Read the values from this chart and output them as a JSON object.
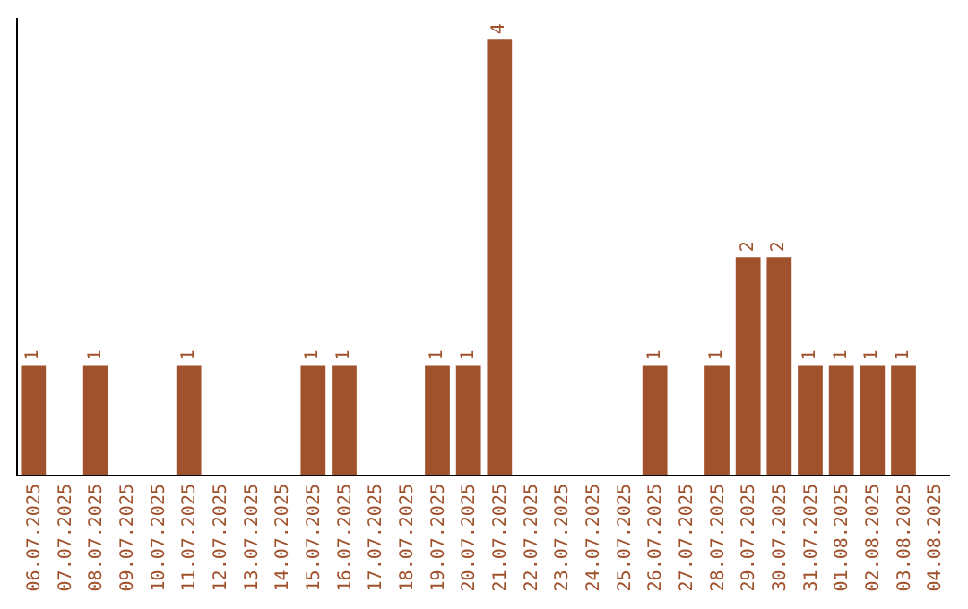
{
  "chart_data": {
    "type": "bar",
    "categories": [
      "06.07.2025",
      "07.07.2025",
      "08.07.2025",
      "09.07.2025",
      "10.07.2025",
      "11.07.2025",
      "12.07.2025",
      "13.07.2025",
      "14.07.2025",
      "15.07.2025",
      "16.07.2025",
      "17.07.2025",
      "18.07.2025",
      "19.07.2025",
      "20.07.2025",
      "21.07.2025",
      "22.07.2025",
      "23.07.2025",
      "24.07.2025",
      "25.07.2025",
      "26.07.2025",
      "27.07.2025",
      "28.07.2025",
      "29.07.2025",
      "30.07.2025",
      "31.07.2025",
      "01.08.2025",
      "02.08.2025",
      "03.08.2025",
      "04.08.2025"
    ],
    "values": [
      1,
      null,
      1,
      null,
      null,
      1,
      null,
      null,
      null,
      1,
      1,
      null,
      null,
      1,
      1,
      4,
      null,
      null,
      null,
      null,
      1,
      null,
      1,
      2,
      2,
      1,
      1,
      1,
      1,
      null
    ],
    "color": "#a0522d",
    "ylim": [
      0,
      4.2
    ],
    "tick_labels": "x",
    "data_labels": true
  }
}
